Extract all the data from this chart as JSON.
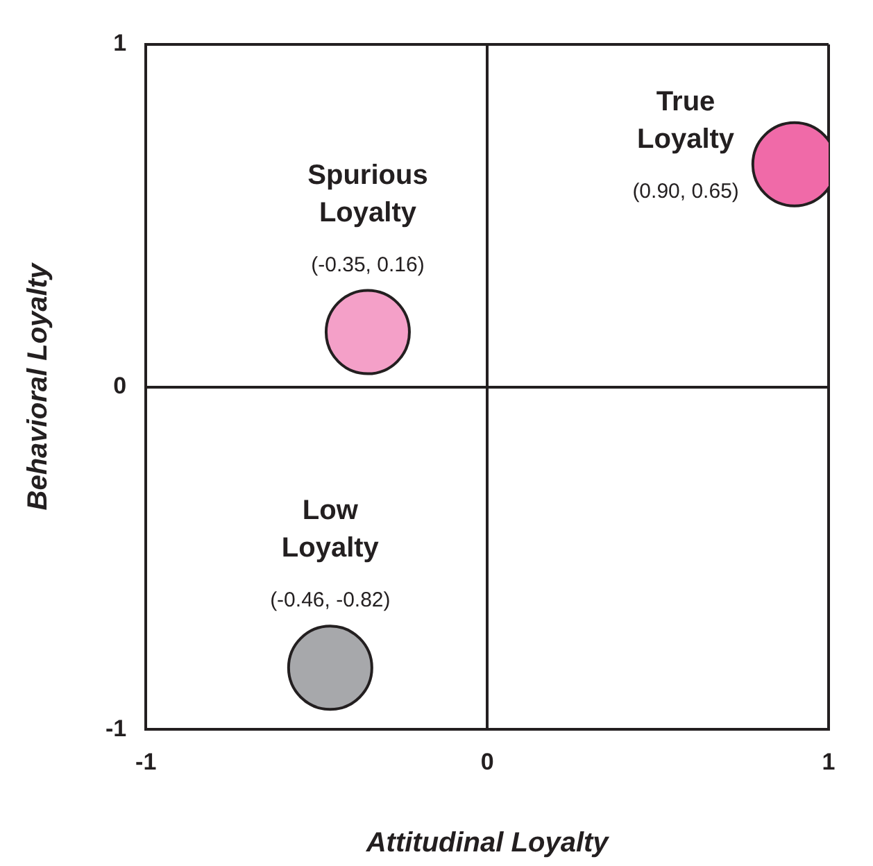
{
  "chart_data": {
    "type": "scatter",
    "xlabel": "Attitudinal Loyalty",
    "ylabel": "Behavioral Loyalty",
    "xlim": [
      -1,
      1
    ],
    "ylim": [
      -1,
      1
    ],
    "xticks": [
      -1,
      0,
      1
    ],
    "yticks": [
      -1,
      0,
      1
    ],
    "grid": true,
    "legend": false,
    "marker": "circle",
    "series": [
      {
        "name": "True Loyalty",
        "color": "#f06aa8",
        "x": [
          0.9
        ],
        "values": [
          0.65
        ],
        "value_labels": [
          "(0.90, 0.65)"
        ]
      },
      {
        "name": "Spurious Loyalty",
        "color": "#f4a0c8",
        "x": [
          -0.35
        ],
        "values": [
          0.16
        ],
        "value_labels": [
          "(-0.35, 0.16)"
        ]
      },
      {
        "name": "Low Loyalty",
        "color": "#a7a8ab",
        "x": [
          -0.46
        ],
        "values": [
          -0.82
        ],
        "value_labels": [
          "(-0.46, -0.82)"
        ]
      }
    ]
  }
}
